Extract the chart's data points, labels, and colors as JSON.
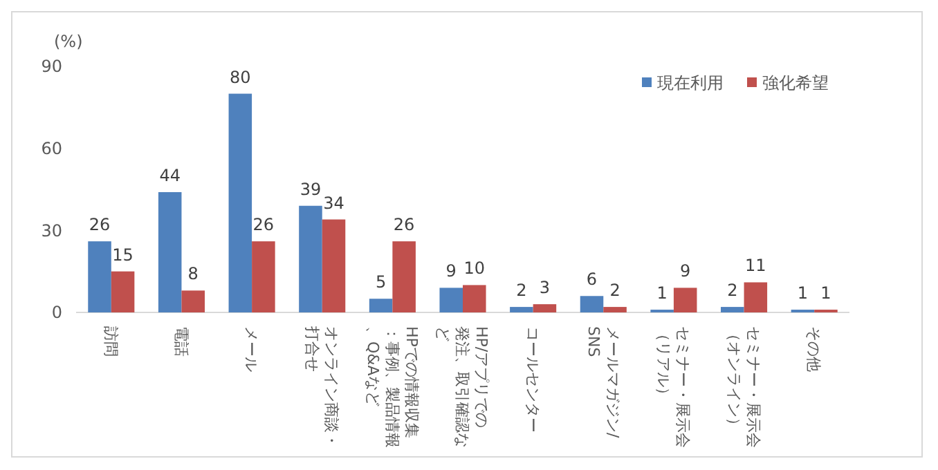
{
  "chart_data": {
    "type": "bar",
    "ylabel": "(%)",
    "categories": [
      "訪問",
      "電話",
      "メール",
      "オンライン商談・打合せ",
      "HPでの情報収集：事例、製品情報、Q&Aなど",
      "HP/アプリでの発注、取引確認など",
      "コールセンター",
      "メールマガジン/SNS",
      "セミナー・展示会（リアル）",
      "セミナー・展示会（オンライン）",
      "その他"
    ],
    "series": [
      {
        "name": "現在利用",
        "color": "#4f81bd",
        "values": [
          26,
          44,
          80,
          39,
          5,
          9,
          2,
          6,
          1,
          2,
          1
        ]
      },
      {
        "name": "強化希望",
        "color": "#c0504d",
        "values": [
          15,
          8,
          26,
          34,
          26,
          10,
          3,
          2,
          9,
          11,
          1
        ]
      }
    ],
    "ylim": [
      0,
      90
    ],
    "yticks": [
      0,
      30,
      60,
      90
    ],
    "data_labels": true,
    "legend": "top right",
    "grid": false
  }
}
